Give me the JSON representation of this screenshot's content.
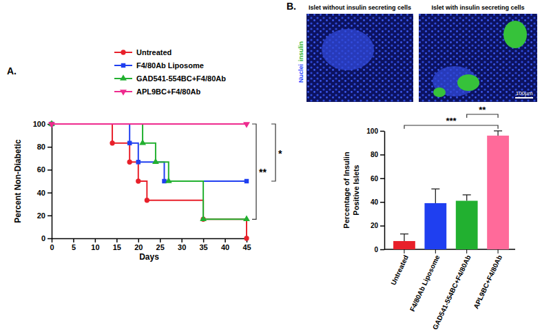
{
  "chart_data": [
    {
      "type": "line",
      "title": "A.",
      "xlabel": "Days",
      "ylabel": "Percent Non-Diabetic",
      "xlim": [
        0,
        45
      ],
      "xticks": [
        0,
        5,
        10,
        15,
        20,
        25,
        30,
        35,
        40,
        45
      ],
      "ylim": [
        0,
        100
      ],
      "yticks": [
        0,
        20,
        40,
        60,
        80,
        100
      ],
      "line_style": "step",
      "legend": "top",
      "series": [
        {
          "name": "Untreated",
          "color": "#e8202a",
          "marker": "circle",
          "x": [
            0,
            14,
            18,
            20,
            22,
            35,
            45
          ],
          "values": [
            100,
            83.3,
            66.7,
            50,
            33.3,
            16.7,
            0
          ]
        },
        {
          "name": "F4/80Ab Liposome",
          "color": "#1f3ff0",
          "marker": "square",
          "x": [
            0,
            18,
            20,
            26,
            45
          ],
          "values": [
            100,
            83.3,
            66.7,
            50,
            50
          ]
        },
        {
          "name": "GAD541-554BC+F4/80Ab",
          "color": "#22b030",
          "marker": "triangle",
          "x": [
            0,
            21,
            24,
            27,
            35,
            45
          ],
          "values": [
            100,
            83.3,
            66.7,
            50,
            16.7,
            16.7
          ]
        },
        {
          "name": "APL9BC+F4/80Ab",
          "color": "#ee2a8e",
          "marker": "triangle-down",
          "x": [
            0,
            45
          ],
          "values": [
            100,
            100
          ]
        }
      ],
      "significance": [
        {
          "from": "APL9BC+F4/80Ab",
          "to": "GAD541-554BC+F4/80Ab",
          "label": "**"
        },
        {
          "from": "APL9BC+F4/80Ab",
          "to": "F4/80Ab Liposome",
          "label": "*"
        }
      ]
    },
    {
      "type": "bar",
      "title": "B.",
      "ylabel": [
        "Percentage of Insulin",
        "Positive Islets"
      ],
      "categories": [
        "Untreated",
        "F4/80Ab Liposome",
        "GAD541-554BC+F4/80Ab",
        "APL9BC+F4/80Ab"
      ],
      "values": [
        7,
        39,
        41,
        96
      ],
      "errors": [
        6,
        12,
        5,
        4
      ],
      "colors": [
        "#e8202a",
        "#1f3ff0",
        "#22b030",
        "#ff6a9a"
      ],
      "ylim": [
        0,
        100
      ],
      "yticks": [
        0,
        20,
        40,
        60,
        80,
        100
      ],
      "significance": [
        {
          "from": "Untreated",
          "to": "APL9BC+F4/80Ab",
          "label": "***"
        },
        {
          "from": "GAD541-554BC+F4/80Ab",
          "to": "APL9BC+F4/80Ab",
          "label": "**"
        }
      ],
      "annotations": [
        "Islet without insulin secreting cells",
        "Islet with insulin secreting cells",
        "Nuclei",
        "insulin",
        "100µm"
      ]
    }
  ]
}
